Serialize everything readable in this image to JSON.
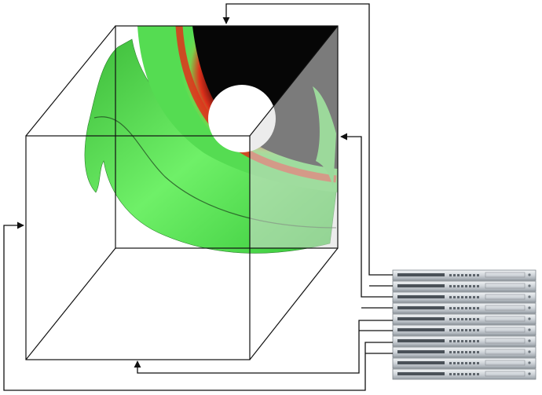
{
  "figure": {
    "description_label": "",
    "volume_region_count": 4,
    "server_unit_count": 10
  },
  "colors": {
    "background": "#ffffff",
    "line": "#111111",
    "green_bright": "#5fe85a",
    "green_dark": "#2f9e32",
    "red_band": "#e0311b",
    "black_core": "#0a0a0a",
    "server_face": "#d9dde2",
    "server_edge": "#7e858c"
  }
}
